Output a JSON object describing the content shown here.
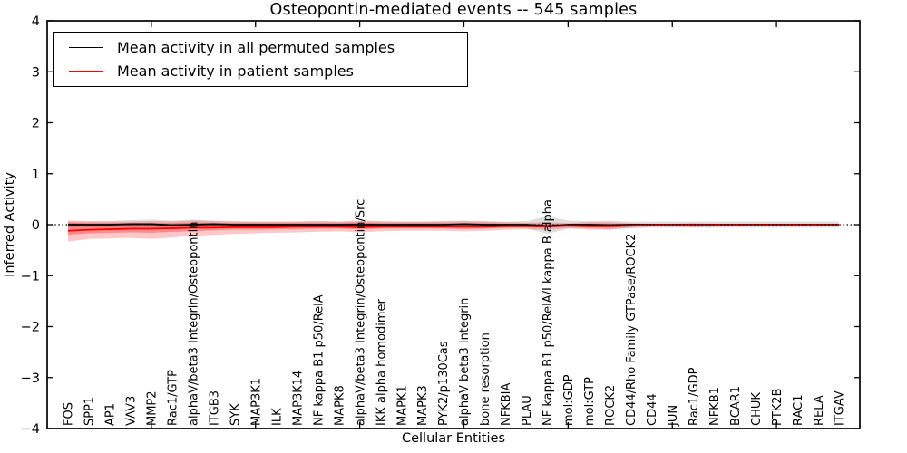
{
  "title": "Osteopontin-mediated events -- 545 samples",
  "chart_data": {
    "type": "line",
    "title": "Osteopontin-mediated events -- 545 samples",
    "xlabel": "Cellular Entities",
    "ylabel": "Inferred Activity",
    "ylim": [
      -4,
      4
    ],
    "yticks": [
      -4,
      -3,
      -2,
      -1,
      0,
      1,
      2,
      3,
      4
    ],
    "xtick_positions": [
      5,
      10,
      15,
      20,
      25,
      30,
      35
    ],
    "grid": false,
    "legend_position": "upper-left",
    "zero_line": {
      "style": "dotted",
      "color": "#000000",
      "y": 0
    },
    "colors": {
      "permuted": "#000000",
      "patient": "#ff0000",
      "permuted_band": "#999999",
      "patient_band": "#ff0000"
    },
    "categories": [
      "FOS",
      "SPP1",
      "AP1",
      "VAV3",
      "MMP2",
      "Rac1/GTP",
      "alphaV/beta3 Integrin/Osteopontin",
      "ITGB3",
      "SYK",
      "MAP3K1",
      "ILK",
      "MAP3K14",
      "NF kappa B1 p50/RelA",
      "MAPK8",
      "alphaV/beta3 Integrin/Osteopontin/Src",
      "IKK alpha homodimer",
      "MAPK1",
      "MAPK3",
      "PYK2/p130Cas",
      "alphaV beta3 Integrin",
      "bone resorption",
      "NFKBIA",
      "PLAU",
      "NF kappa B1 p50/RelA/I kappa B alpha",
      "mol:GDP",
      "mol:GTP",
      "ROCK2",
      "CD44/Rho Family GTPase/ROCK2",
      "CD44",
      "JUN",
      "Rac1/GDP",
      "NFKB1",
      "BCAR1",
      "CHUK",
      "PTK2B",
      "RAC1",
      "RELA",
      "ITGAV"
    ],
    "series": [
      {
        "name": "Mean activity in all permuted samples",
        "color": "#000000",
        "values": [
          0,
          0,
          0,
          0.01,
          0.01,
          -0.01,
          0,
          0.01,
          0,
          0,
          0,
          0,
          0,
          0,
          0,
          0,
          0,
          0,
          0,
          0.01,
          0,
          0,
          0,
          -0.03,
          0,
          0,
          -0.01,
          0,
          0,
          0,
          0,
          0,
          0,
          0,
          0,
          0,
          0,
          0
        ]
      },
      {
        "name": "Mean activity in patient samples",
        "color": "#ff0000",
        "values": [
          -0.12,
          -0.1,
          -0.09,
          -0.08,
          -0.08,
          -0.07,
          -0.06,
          -0.06,
          -0.05,
          -0.05,
          -0.05,
          -0.04,
          -0.04,
          -0.04,
          -0.05,
          -0.04,
          -0.04,
          -0.04,
          -0.04,
          -0.04,
          -0.04,
          -0.03,
          -0.03,
          -0.04,
          -0.02,
          -0.03,
          -0.03,
          -0.02,
          -0.01,
          -0.01,
          -0.01,
          -0.01,
          -0.01,
          -0.01,
          -0.01,
          -0.01,
          -0.01,
          -0.01
        ]
      }
    ],
    "bands": [
      {
        "name": "permuted-std-band",
        "color": "#999999",
        "opacity": 0.32,
        "lower": [
          -0.06,
          -0.06,
          -0.06,
          -0.07,
          -0.08,
          -0.1,
          -0.08,
          -0.07,
          -0.06,
          -0.06,
          -0.06,
          -0.06,
          -0.07,
          -0.06,
          -0.07,
          -0.06,
          -0.06,
          -0.06,
          -0.07,
          -0.09,
          -0.08,
          -0.06,
          -0.07,
          -0.18,
          -0.08,
          -0.07,
          -0.09,
          -0.07,
          -0.06,
          -0.06,
          -0.06,
          -0.06,
          -0.06,
          -0.06,
          -0.06,
          -0.06,
          -0.06,
          -0.06
        ],
        "upper": [
          0.06,
          0.06,
          0.07,
          0.09,
          0.1,
          0.08,
          0.1,
          0.08,
          0.07,
          0.06,
          0.06,
          0.06,
          0.07,
          0.06,
          0.07,
          0.06,
          0.06,
          0.06,
          0.07,
          0.08,
          0.07,
          0.06,
          0.07,
          0.17,
          0.08,
          0.07,
          0.08,
          0.06,
          0.06,
          0.06,
          0.06,
          0.06,
          0.06,
          0.06,
          0.06,
          0.06,
          0.06,
          0.06
        ]
      },
      {
        "name": "patient-range-band",
        "color": "#ff0000",
        "opacity": 0.22,
        "lower": [
          -0.33,
          -0.28,
          -0.27,
          -0.26,
          -0.28,
          -0.25,
          -0.22,
          -0.2,
          -0.18,
          -0.17,
          -0.16,
          -0.15,
          -0.14,
          -0.13,
          -0.15,
          -0.13,
          -0.12,
          -0.12,
          -0.12,
          -0.13,
          -0.12,
          -0.1,
          -0.09,
          -0.1,
          -0.07,
          -0.1,
          -0.1,
          -0.06,
          -0.04,
          -0.04,
          -0.05,
          -0.04,
          -0.03,
          -0.03,
          -0.03,
          -0.03,
          -0.03,
          -0.03
        ],
        "upper": [
          0.08,
          0.07,
          0.06,
          0.06,
          0.07,
          0.06,
          0.08,
          0.07,
          0.06,
          0.06,
          0.06,
          0.06,
          0.07,
          0.06,
          0.08,
          0.07,
          0.06,
          0.06,
          0.06,
          0.07,
          0.06,
          0.05,
          0.04,
          0.05,
          0.03,
          0.05,
          0.05,
          0.03,
          0.02,
          0.02,
          0.03,
          0.02,
          0.02,
          0.02,
          0.02,
          0.02,
          0.02,
          0.02
        ]
      },
      {
        "name": "patient-std-band",
        "color": "#ff0000",
        "opacity": 0.3,
        "lower": [
          -0.2,
          -0.17,
          -0.16,
          -0.15,
          -0.16,
          -0.14,
          -0.13,
          -0.11,
          -0.1,
          -0.1,
          -0.09,
          -0.09,
          -0.08,
          -0.08,
          -0.09,
          -0.08,
          -0.07,
          -0.07,
          -0.07,
          -0.08,
          -0.07,
          -0.06,
          -0.05,
          -0.06,
          -0.04,
          -0.06,
          -0.06,
          -0.04,
          -0.02,
          -0.02,
          -0.03,
          -0.02,
          -0.02,
          -0.02,
          -0.02,
          -0.02,
          -0.02,
          -0.02
        ],
        "upper": [
          0.04,
          0.03,
          0.03,
          0.03,
          0.03,
          0.03,
          0.04,
          0.03,
          0.03,
          0.03,
          0.03,
          0.03,
          0.03,
          0.03,
          0.04,
          0.03,
          0.03,
          0.03,
          0.03,
          0.03,
          0.03,
          0.02,
          0.02,
          0.02,
          0.01,
          0.02,
          0.02,
          0.01,
          0.01,
          0.01,
          0.01,
          0.01,
          0.01,
          0.01,
          0.01,
          0.01,
          0.01,
          0.01
        ]
      }
    ]
  }
}
